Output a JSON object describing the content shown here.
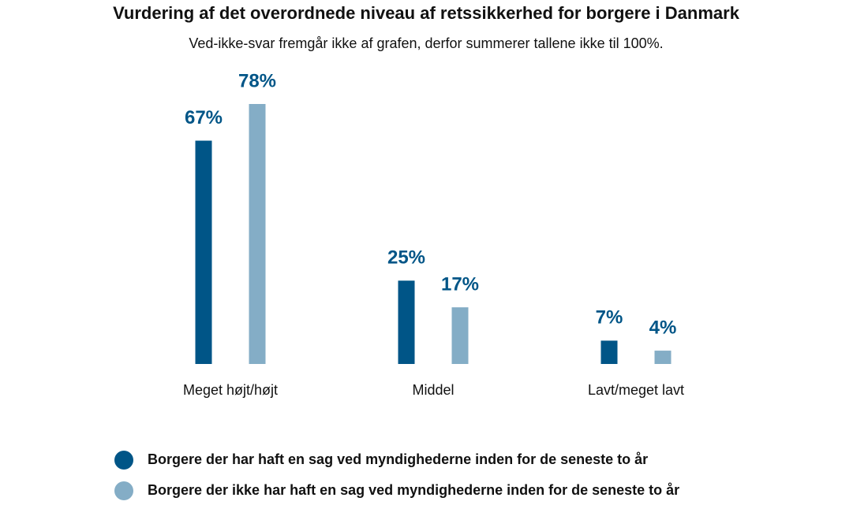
{
  "chart_data": {
    "type": "bar",
    "title": "Vurdering af det overordnede niveau af retssikkerhed for borgere i Danmark",
    "subtitle": "Ved-ikke-svar fremgår ikke af grafen, derfor summerer tallene ikke til 100%.",
    "categories": [
      "Meget højt/højt",
      "Middel",
      "Lavt/meget lavt"
    ],
    "series": [
      {
        "name": "Borgere der har haft en sag ved myndighederne inden for de seneste to år",
        "color": "#005587",
        "values": [
          67,
          25,
          7
        ],
        "value_labels": [
          "67%",
          "25%",
          "7%"
        ]
      },
      {
        "name": "Borgere der ikke har haft en sag ved myndighederne inden for de seneste to år",
        "color": "#84adc6",
        "values": [
          78,
          17,
          4
        ],
        "value_labels": [
          "78%",
          "17%",
          "4%"
        ]
      }
    ]
  }
}
